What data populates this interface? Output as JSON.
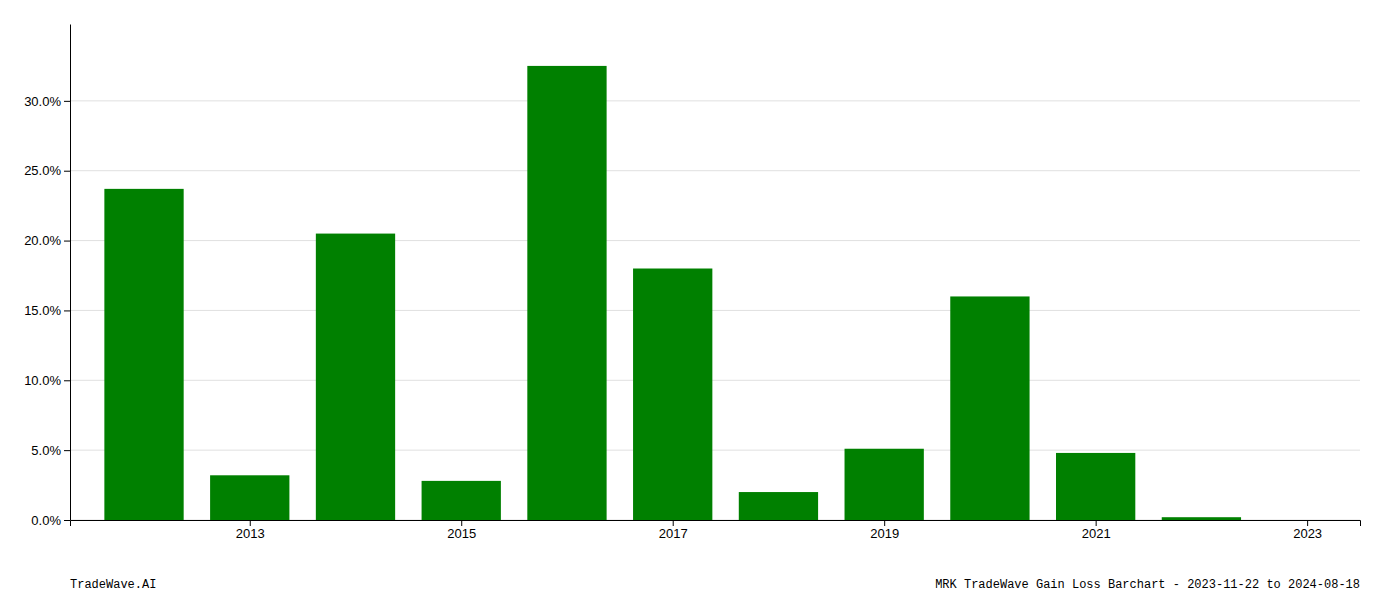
{
  "chart_data": {
    "type": "bar",
    "x": [
      2012,
      2013,
      2014,
      2015,
      2016,
      2017,
      2018,
      2019,
      2020,
      2021,
      2022
    ],
    "values": [
      0.237,
      0.032,
      0.205,
      0.028,
      0.325,
      0.18,
      0.02,
      0.051,
      0.16,
      0.048,
      0.002
    ],
    "color": "#008000",
    "xlim": [
      2011.3,
      2023.5
    ],
    "xticks": [
      2013,
      2015,
      2017,
      2019,
      2021,
      2023
    ],
    "ylim": [
      0.0,
      0.355
    ],
    "yticks": [
      {
        "value": 0.0,
        "label": "0.0%"
      },
      {
        "value": 0.05,
        "label": "5.0%"
      },
      {
        "value": 0.1,
        "label": "10.0%"
      },
      {
        "value": 0.15,
        "label": "15.0%"
      },
      {
        "value": 0.2,
        "label": "20.0%"
      },
      {
        "value": 0.25,
        "label": "25.0%"
      },
      {
        "value": 0.3,
        "label": "30.0%"
      }
    ],
    "grid": true,
    "annotations": [
      "TradeWave.AI",
      "MRK TradeWave Gain Loss Barchart - 2023-11-22 to 2024-08-18"
    ]
  }
}
